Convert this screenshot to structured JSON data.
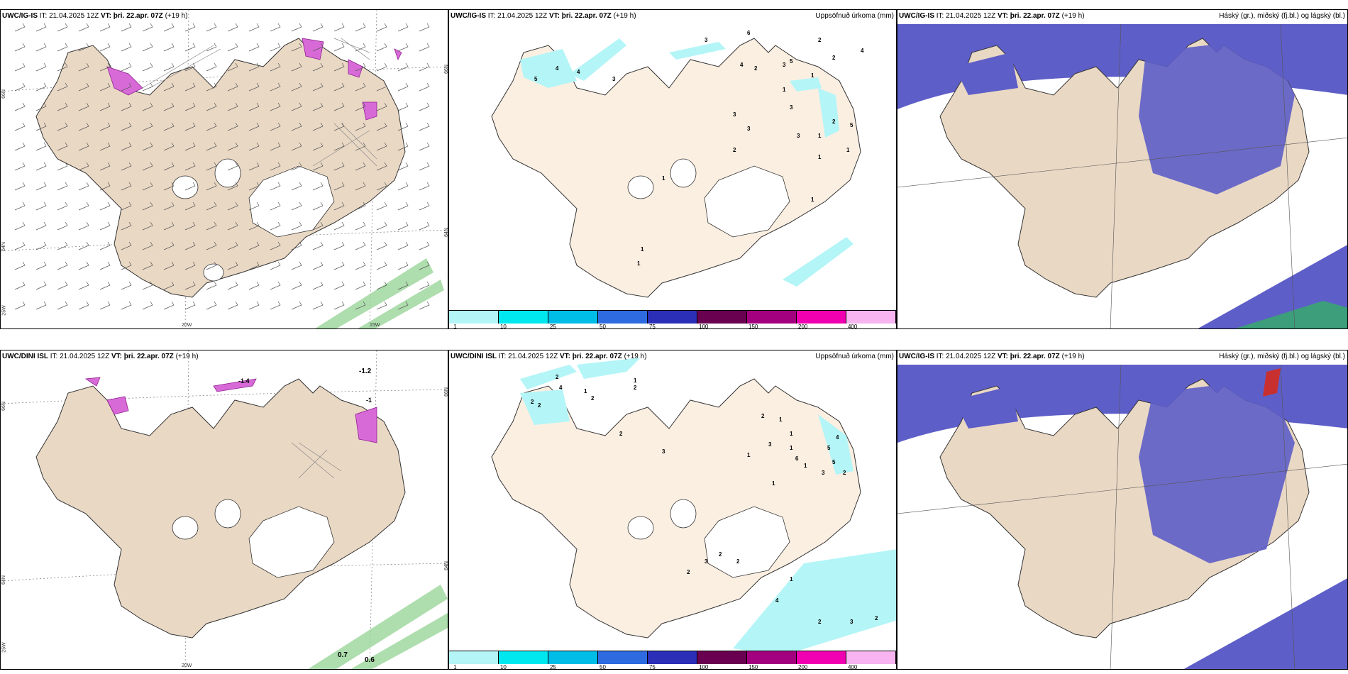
{
  "panels": [
    {
      "title_model": "UWC/IG-IS",
      "title_it": "IT: 21.04.2025 12Z",
      "title_vt": "VT: þri. 22.apr. 07Z",
      "title_lead": "(+19 h)"
    },
    {
      "title_model": "UWC/IG-IS",
      "title_it": "IT: 21.04.2025 12Z",
      "title_vt": "VT: þri. 22.apr. 07Z",
      "title_lead": "(+19 h)",
      "right_title": "Uppsöfnuð úrkoma (mm)"
    },
    {
      "title_model": "UWC/IG-IS",
      "title_it": "IT: 21.04.2025 12Z",
      "title_vt": "VT: þri. 22.apr. 07Z",
      "title_lead": "(+19 h)",
      "right_title": "Háský (gr.), miðský (fj.bl.) og lágský (bl.)"
    },
    {
      "title_model": "UWC/DINI ISL",
      "title_it": "IT: 21.04.2025 12Z",
      "title_vt": "VT: þri. 22.apr. 07Z",
      "title_lead": "(+19 h)"
    },
    {
      "title_model": "UWC/DINI ISL",
      "title_it": "IT: 21.04.2025 12Z",
      "title_vt": "VT: þri. 22.apr. 07Z",
      "title_lead": "(+19 h)",
      "right_title": "Uppsöfnuð úrkoma (mm)"
    },
    {
      "title_model": "UWC/IG-IS",
      "title_it": "IT: 21.04.2025 12Z",
      "title_vt": "VT: þri. 22.apr. 07Z",
      "title_lead": "(+19 h)",
      "right_title": "Háský (gr.), miðský (fj.bl.) og lágský (bl.)"
    }
  ],
  "axis_labels": {
    "lat66": "66N",
    "lat64": "64N",
    "lat25": "25W",
    "lon20": "20W",
    "lon15": "15W"
  },
  "legend": {
    "ticks": [
      "1",
      "10",
      "25",
      "50",
      "75",
      "100",
      "150",
      "200",
      "400"
    ],
    "colors": [
      "#b4f5f7",
      "#00e8ef",
      "#00bde8",
      "#2e6be0",
      "#2b2fb8",
      "#6a0050",
      "#a3007f",
      "#f000b0",
      "#f7b4f0"
    ]
  },
  "temp_labels_top": [
    "-1.2",
    "-1.4",
    "-1"
  ],
  "temp_labels_bottom": [
    "0.7",
    "0.6"
  ],
  "precip_top": [
    "3",
    "6",
    "4",
    "3",
    "5",
    "2",
    "2",
    "4",
    "1",
    "1",
    "2",
    "4",
    "5",
    "4",
    "3",
    "3",
    "3",
    "3",
    "3",
    "1",
    "5",
    "2",
    "1",
    "1",
    "1",
    "1",
    "1",
    "2",
    "1"
  ],
  "precip_bottom": [
    "2",
    "1",
    "4",
    "2",
    "2",
    "1",
    "2",
    "2",
    "3",
    "2",
    "1",
    "3",
    "2",
    "1",
    "1",
    "1",
    "6",
    "5",
    "4",
    "5",
    "2",
    "3",
    "1",
    "1",
    "2",
    "2",
    "2",
    "3",
    "1",
    "4",
    "2",
    "3",
    "2"
  ]
}
